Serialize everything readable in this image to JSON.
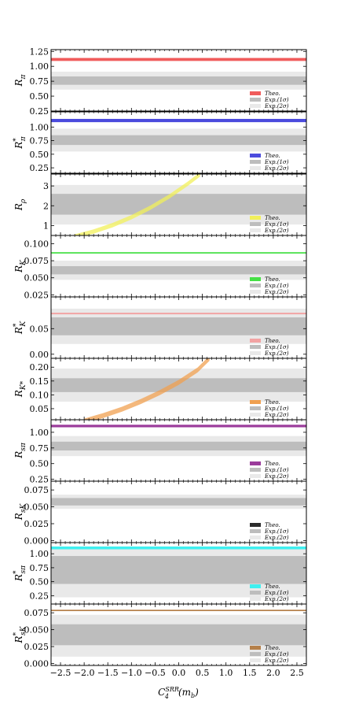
{
  "chart_data": {
    "type": "multi-panel",
    "x_axis": {
      "label": "C",
      "label_sup": "SRR",
      "label_sub": "4",
      "label_suffix": "(m",
      "label_suffix_sub": "b",
      "label_end": ")",
      "range": [
        -2.7,
        2.7
      ],
      "ticks": [
        -2.5,
        -2.0,
        -1.5,
        -1.0,
        -0.5,
        0.0,
        0.5,
        1.0,
        1.5,
        2.0,
        2.5
      ],
      "tick_labels": [
        "−2.5",
        "−2.0",
        "−1.5",
        "−1.0",
        "−0.5",
        "0.0",
        "0.5",
        "1.0",
        "1.5",
        "2.0",
        "2.5"
      ]
    },
    "legend_labels": {
      "theo": "Theo.",
      "exp1": "Exp.(1σ)",
      "exp2": "Exp.(2σ)"
    },
    "colors": {
      "exp1": "#bdbdbd",
      "exp2": "#e9e9e9"
    },
    "panels": [
      {
        "ylabel": "R",
        "ylabel_sub": "π",
        "ylabel_sup": "",
        "ylim": [
          0.25,
          1.28
        ],
        "yticks": [
          0.25,
          0.5,
          0.75,
          1.0,
          1.25
        ],
        "ytick_labels": [
          "0.25",
          "0.50",
          "0.75",
          "1.00",
          "1.25"
        ],
        "exp1": [
          0.69,
          0.83
        ],
        "exp2": [
          0.61,
          0.91
        ],
        "theo_color": "#f05b5b",
        "theo": {
          "kind": "flat",
          "lo": 1.09,
          "hi": 1.14
        }
      },
      {
        "ylabel": "R",
        "ylabel_sub": "π",
        "ylabel_sup": "*",
        "ylim": [
          0.15,
          1.28
        ],
        "yticks": [
          0.25,
          0.5,
          0.75,
          1.0
        ],
        "ytick_labels": [
          "0.25",
          "0.50",
          "0.75",
          "1.00"
        ],
        "exp1": [
          0.67,
          0.85
        ],
        "exp2": [
          0.55,
          0.97
        ],
        "theo_color": "#4b4bdd",
        "theo": {
          "kind": "flat",
          "lo": 1.09,
          "hi": 1.15
        }
      },
      {
        "ylabel": "R",
        "ylabel_sub": "ρ",
        "ylabel_sup": "",
        "ylim": [
          0.5,
          3.6
        ],
        "yticks": [
          1,
          2,
          3
        ],
        "ytick_labels": [
          "1",
          "2",
          "3"
        ],
        "exp1": [
          1.55,
          2.6
        ],
        "exp2": [
          1.05,
          3.05
        ],
        "theo_color": "#f2f05a",
        "theo": {
          "kind": "curve",
          "x": [
            -2.2,
            -1.8,
            -1.4,
            -1.0,
            -0.6,
            -0.2,
            0.2,
            0.45
          ],
          "y": [
            0.45,
            0.7,
            1.02,
            1.42,
            1.9,
            2.47,
            3.12,
            3.58
          ],
          "width": 0.22
        }
      },
      {
        "ylabel": "R",
        "ylabel_sub": "K",
        "ylabel_sup": "",
        "ylim": [
          0.022,
          0.112
        ],
        "yticks": [
          0.025,
          0.05,
          0.075,
          0.1
        ],
        "ytick_labels": [
          "0.025",
          "0.050",
          "0.075",
          "0.100"
        ],
        "exp1": [
          0.055,
          0.067
        ],
        "exp2": [
          0.047,
          0.075
        ],
        "theo_color": "#45e045",
        "theo": {
          "kind": "flat",
          "lo": 0.0855,
          "hi": 0.0875
        }
      },
      {
        "ylabel": "R",
        "ylabel_sub": "K",
        "ylabel_sup": "*",
        "ylim": [
          -0.008,
          0.112
        ],
        "yticks": [
          0.0,
          0.05
        ],
        "ytick_labels": [
          "0.00",
          "0.05"
        ],
        "exp1": [
          0.037,
          0.072
        ],
        "exp2": [
          0.02,
          0.089
        ],
        "theo_color": "#f2a3a3",
        "theo": {
          "kind": "flat",
          "lo": 0.078,
          "hi": 0.081
        }
      },
      {
        "ylabel": "R",
        "ylabel_sub": "K*",
        "ylabel_sup": "",
        "ylim": [
          0.01,
          0.232
        ],
        "yticks": [
          0.05,
          0.1,
          0.15,
          0.2
        ],
        "ytick_labels": [
          "0.05",
          "0.10",
          "0.15",
          "0.20"
        ],
        "exp1": [
          0.11,
          0.16
        ],
        "exp2": [
          0.075,
          0.195
        ],
        "theo_color": "#f0a050",
        "theo": {
          "kind": "curve",
          "x": [
            -2.0,
            -1.6,
            -1.2,
            -0.8,
            -0.4,
            0.0,
            0.4,
            0.65
          ],
          "y": [
            0.005,
            0.025,
            0.048,
            0.076,
            0.108,
            0.145,
            0.19,
            0.232
          ],
          "width": 0.018
        }
      },
      {
        "ylabel": "R",
        "ylabel_sub": "sπ",
        "ylabel_sup": "",
        "ylim": [
          0.22,
          1.2
        ],
        "yticks": [
          0.25,
          0.5,
          0.75,
          1.0
        ],
        "ytick_labels": [
          "0.25",
          "0.50",
          "0.75",
          "1.00"
        ],
        "exp1": [
          0.71,
          0.85
        ],
        "exp2": [
          0.62,
          0.94
        ],
        "theo_color": "#9b3b9b",
        "theo": {
          "kind": "flat",
          "lo": 1.08,
          "hi": 1.12
        }
      },
      {
        "ylabel": "R",
        "ylabel_sub": "sK",
        "ylabel_sup": "",
        "ylim": [
          -0.003,
          0.088
        ],
        "yticks": [
          0.0,
          0.025,
          0.05,
          0.075
        ],
        "ytick_labels": [
          "0.000",
          "0.025",
          "0.050",
          "0.075"
        ],
        "exp1": [
          0.052,
          0.063
        ],
        "exp2": [
          0.047,
          0.068
        ],
        "theo_color": "#2b2b2b",
        "theo": {
          "kind": "none"
        }
      },
      {
        "ylabel": "R",
        "ylabel_sub": "sπ",
        "ylabel_sup": "*",
        "ylim": [
          0.1,
          1.2
        ],
        "yticks": [
          0.25,
          0.5,
          0.75,
          1.0
        ],
        "ytick_labels": [
          "0.25",
          "0.50",
          "0.75",
          "1.00"
        ],
        "exp1": [
          0.46,
          0.96
        ],
        "exp2": [
          0.22,
          1.08
        ],
        "theo_color": "#3ff0f0",
        "theo": {
          "kind": "flat",
          "lo": 1.08,
          "hi": 1.13
        }
      },
      {
        "ylabel": "R",
        "ylabel_sub": "sK",
        "ylabel_sup": "*",
        "ylim": [
          -0.003,
          0.088
        ],
        "yticks": [
          0.0,
          0.025,
          0.05,
          0.075
        ],
        "ytick_labels": [
          "0.000",
          "0.025",
          "0.050",
          "0.075"
        ],
        "exp1": [
          0.027,
          0.058
        ],
        "exp2": [
          0.01,
          0.072
        ],
        "theo_color": "#b5804a",
        "theo": {
          "kind": "flat",
          "lo": 0.0775,
          "hi": 0.0795
        }
      }
    ]
  }
}
